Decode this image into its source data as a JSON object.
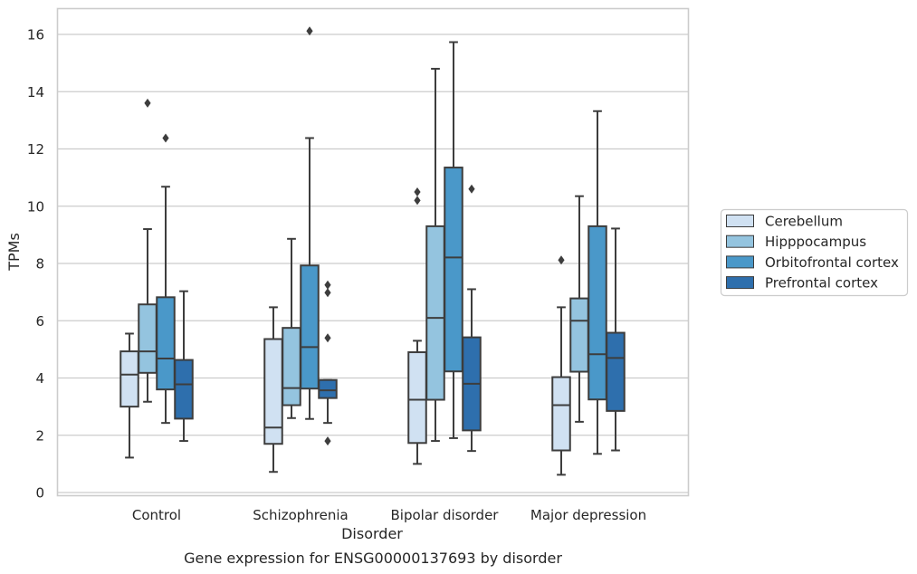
{
  "chart_data": {
    "type": "box",
    "caption": "Gene expression for ENSG00000137693 by disorder",
    "xlabel": "Disorder",
    "ylabel": "TPMs",
    "ylim": [
      -0.2,
      16.9
    ],
    "yticks": [
      0,
      2,
      4,
      6,
      8,
      10,
      12,
      14,
      16
    ],
    "grid": true,
    "legend_position": "right",
    "categories": [
      "Control",
      "Schizophrenia",
      "Bipolar disorder",
      "Major depression"
    ],
    "series": [
      {
        "name": "Cerebellum",
        "color": "#d0e1f2",
        "boxes": [
          {
            "whislo": 1.22,
            "q1": 3.0,
            "med": 4.12,
            "q3": 4.93,
            "whishi": 5.55,
            "fliers": []
          },
          {
            "whislo": 0.72,
            "q1": 1.7,
            "med": 2.27,
            "q3": 5.36,
            "whishi": 6.47,
            "fliers": []
          },
          {
            "whislo": 1.0,
            "q1": 1.73,
            "med": 3.24,
            "q3": 4.9,
            "whishi": 5.3,
            "fliers": [
              10.5,
              10.2
            ]
          },
          {
            "whislo": 0.62,
            "q1": 1.47,
            "med": 3.05,
            "q3": 4.03,
            "whishi": 6.47,
            "fliers": [
              8.12
            ]
          }
        ]
      },
      {
        "name": "Hipppocampus",
        "color": "#94c4df",
        "boxes": [
          {
            "whislo": 3.17,
            "q1": 4.18,
            "med": 4.93,
            "q3": 6.57,
            "whishi": 9.2,
            "fliers": [
              13.6
            ]
          },
          {
            "whislo": 2.6,
            "q1": 3.05,
            "med": 3.65,
            "q3": 5.75,
            "whishi": 8.86,
            "fliers": []
          },
          {
            "whislo": 1.8,
            "q1": 3.24,
            "med": 6.1,
            "q3": 9.3,
            "whishi": 14.8,
            "fliers": []
          },
          {
            "whislo": 2.47,
            "q1": 4.22,
            "med": 6.0,
            "q3": 6.78,
            "whishi": 10.35,
            "fliers": []
          }
        ]
      },
      {
        "name": "Orbitofrontal cortex",
        "color": "#4a98c9",
        "boxes": [
          {
            "whislo": 2.43,
            "q1": 3.6,
            "med": 4.68,
            "q3": 6.82,
            "whishi": 10.68,
            "fliers": [
              12.38
            ]
          },
          {
            "whislo": 2.57,
            "q1": 3.63,
            "med": 5.08,
            "q3": 7.93,
            "whishi": 12.38,
            "fliers": [
              16.12
            ]
          },
          {
            "whislo": 1.9,
            "q1": 4.23,
            "med": 8.21,
            "q3": 11.35,
            "whishi": 15.73,
            "fliers": []
          },
          {
            "whislo": 1.35,
            "q1": 3.25,
            "med": 4.83,
            "q3": 9.3,
            "whishi": 13.32,
            "fliers": []
          }
        ]
      },
      {
        "name": "Prefrontal cortex",
        "color": "#2e6fad",
        "boxes": [
          {
            "whislo": 1.8,
            "q1": 2.58,
            "med": 3.78,
            "q3": 4.63,
            "whishi": 7.03,
            "fliers": []
          },
          {
            "whislo": 2.43,
            "q1": 3.3,
            "med": 3.57,
            "q3": 3.93,
            "whishi": 3.93,
            "fliers": [
              7.25,
              6.98,
              5.4,
              1.8
            ]
          },
          {
            "whislo": 1.45,
            "q1": 2.17,
            "med": 3.8,
            "q3": 5.42,
            "whishi": 7.1,
            "fliers": [
              10.6
            ]
          },
          {
            "whislo": 1.47,
            "q1": 2.85,
            "med": 4.7,
            "q3": 5.58,
            "whishi": 9.22,
            "fliers": []
          }
        ]
      }
    ]
  }
}
